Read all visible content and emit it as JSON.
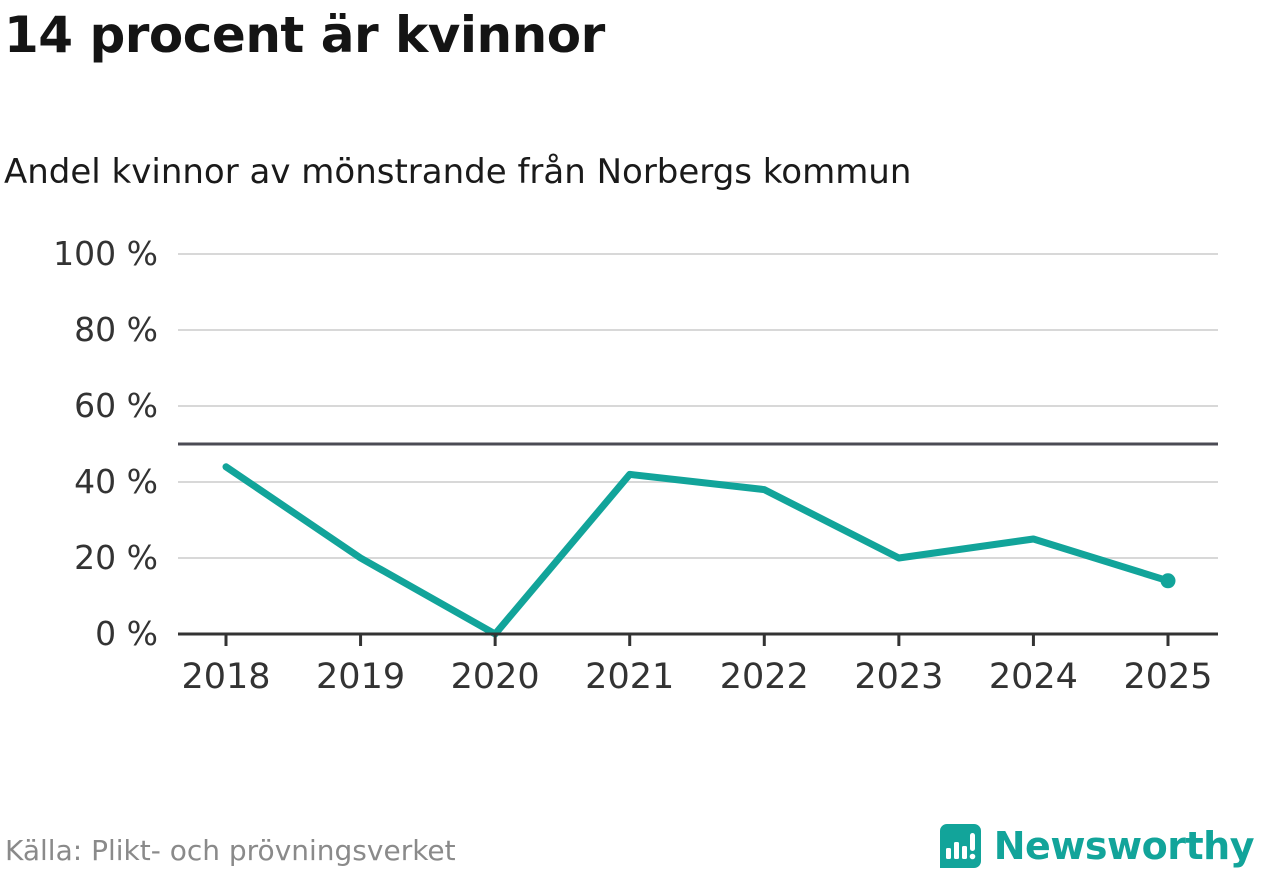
{
  "chart_data": {
    "type": "line",
    "title": "14 procent är kvinnor",
    "subtitle": "Andel kvinnor av mönstrande från Norbergs kommun",
    "x": [
      "2018",
      "2019",
      "2020",
      "2021",
      "2022",
      "2023",
      "2024",
      "2025"
    ],
    "series": [
      {
        "name": "Andel kvinnor",
        "values": [
          44,
          20,
          0,
          42,
          38,
          20,
          25,
          14
        ]
      }
    ],
    "ylim": [
      0,
      100
    ],
    "yticks": [
      0,
      20,
      40,
      60,
      80,
      100
    ],
    "ytick_suffix": " %",
    "reference_line": 50,
    "grid": true,
    "legend": "none",
    "line_color": "#12a49a",
    "grid_color": "#d8d8d8",
    "axis_color": "#333333",
    "reference_color": "#4b4b54",
    "tick_label_color": "#333333"
  },
  "footer": {
    "source": "Källa: Plikt- och prövningsverket",
    "brand": "Newsworthy",
    "brand_color": "#12a49a"
  }
}
